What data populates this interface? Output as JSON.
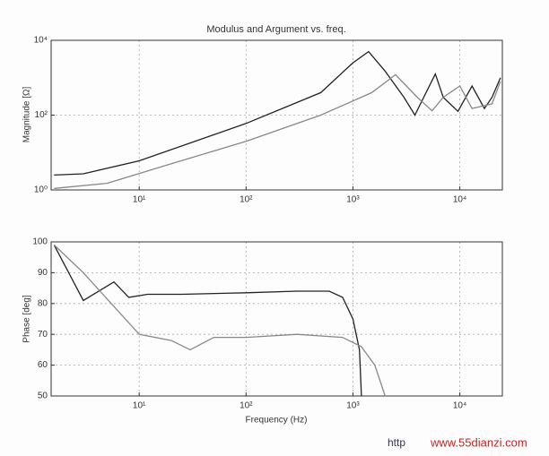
{
  "chart_data": [
    {
      "type": "line",
      "title": "Modulus and Argument vs. freq.",
      "ylabel": "Magnitude [Ω]",
      "log_x": true,
      "log_y": true,
      "grid": true,
      "xlim": [
        1.5,
        25000
      ],
      "ylim": [
        1,
        10000
      ],
      "xticks": [
        {
          "value": 10,
          "label": "10¹"
        },
        {
          "value": 100,
          "label": "10²"
        },
        {
          "value": 1000,
          "label": "10³"
        },
        {
          "value": 10000,
          "label": "10⁴"
        }
      ],
      "yticks": [
        {
          "value": 1,
          "label": "10⁰"
        },
        {
          "value": 100,
          "label": "10²"
        },
        {
          "value": 10000,
          "label": "10⁴"
        }
      ],
      "series": [
        {
          "color": "#222222",
          "x": [
            1.6,
            3,
            10,
            100,
            500,
            1000,
            1400,
            2000,
            3000,
            3800,
            5900,
            7000,
            9600,
            13000,
            17000,
            20000,
            24000
          ],
          "values": [
            2.5,
            2.7,
            6,
            60,
            400,
            2500,
            5000,
            1500,
            300,
            100,
            1260,
            300,
            126,
            600,
            150,
            300,
            1000
          ]
        },
        {
          "color": "#888888",
          "x": [
            1.6,
            5,
            20,
            100,
            500,
            1500,
            2500,
            4000,
            5500,
            7000,
            10000,
            13000,
            20000,
            24000
          ],
          "values": [
            1.1,
            1.5,
            5,
            20,
            100,
            400,
            1200,
            300,
            130,
            300,
            600,
            150,
            200,
            800
          ]
        }
      ]
    },
    {
      "type": "line",
      "xlabel": "Frequency (Hz)",
      "ylabel": "Phase [deg]",
      "log_x": true,
      "log_y": false,
      "grid": true,
      "xlim": [
        1.5,
        25000
      ],
      "ylim": [
        50,
        100
      ],
      "xticks": [
        {
          "value": 10,
          "label": "10¹"
        },
        {
          "value": 100,
          "label": "10²"
        },
        {
          "value": 1000,
          "label": "10³"
        },
        {
          "value": 10000,
          "label": "10⁴"
        }
      ],
      "yticks": [
        50,
        60,
        70,
        80,
        90,
        100
      ],
      "series": [
        {
          "color": "#222222",
          "x": [
            1.6,
            3,
            5.8,
            8,
            12,
            25,
            100,
            300,
            600,
            800,
            1000,
            1150,
            1200
          ],
          "values": [
            99,
            81,
            87,
            82,
            83,
            83,
            83.5,
            84,
            84,
            82,
            75,
            65,
            50
          ]
        },
        {
          "color": "#888888",
          "x": [
            1.6,
            3,
            10,
            20,
            30,
            50,
            100,
            300,
            800,
            1200,
            1600,
            2000
          ],
          "values": [
            99,
            90,
            70,
            68,
            65,
            69,
            69,
            70,
            69,
            66,
            60,
            50
          ]
        }
      ]
    }
  ],
  "watermark": [
    "http",
    "www.55dianzi.com"
  ]
}
